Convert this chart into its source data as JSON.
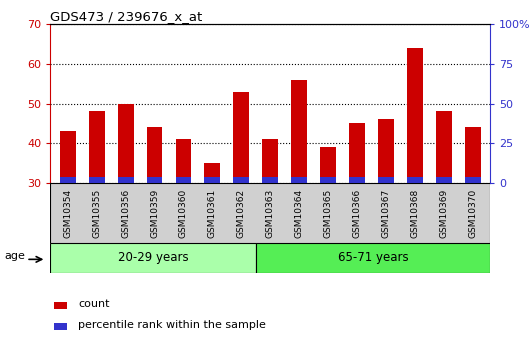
{
  "title": "GDS473 / 239676_x_at",
  "samples": [
    "GSM10354",
    "GSM10355",
    "GSM10356",
    "GSM10359",
    "GSM10360",
    "GSM10361",
    "GSM10362",
    "GSM10363",
    "GSM10364",
    "GSM10365",
    "GSM10366",
    "GSM10367",
    "GSM10368",
    "GSM10369",
    "GSM10370"
  ],
  "count_values": [
    43,
    48,
    50,
    44,
    41,
    35,
    53,
    41,
    56,
    39,
    45,
    46,
    64,
    48,
    44
  ],
  "percentile_values": [
    1.5,
    1.5,
    1.5,
    1.5,
    1.5,
    1.5,
    1.5,
    1.5,
    1.5,
    1.5,
    1.5,
    1.5,
    1.5,
    1.5,
    1.5
  ],
  "bar_bottom": 30,
  "ylim_left": [
    30,
    70
  ],
  "ylim_right": [
    0,
    100
  ],
  "yticks_left": [
    30,
    40,
    50,
    60,
    70
  ],
  "yticks_right": [
    0,
    25,
    50,
    75,
    100
  ],
  "ytick_labels_right": [
    "0",
    "25",
    "50",
    "75",
    "100%"
  ],
  "group1_label": "20-29 years",
  "group2_label": "65-71 years",
  "group1_count": 7,
  "group2_count": 8,
  "group1_color": "#aaffaa",
  "group2_color": "#55ee55",
  "age_label": "age",
  "red_color": "#cc0000",
  "blue_color": "#3333cc",
  "legend_count": "count",
  "legend_percentile": "percentile rank within the sample",
  "axis_color_left": "#cc0000",
  "axis_color_right": "#3333cc",
  "bar_width": 0.55,
  "tick_bg_color": "#d0d0d0"
}
